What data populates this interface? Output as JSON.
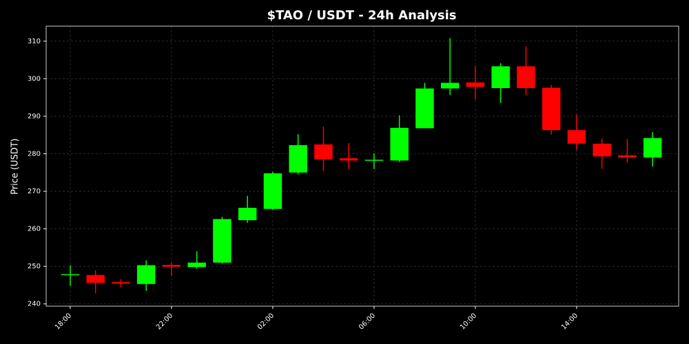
{
  "chart_data": {
    "type": "candlestick",
    "title": "$TAO / USDT - 24h Analysis",
    "y_label": "Price (USDT)",
    "categories": [
      "18:00",
      null,
      null,
      null,
      "22:00",
      null,
      null,
      null,
      "02:00",
      null,
      null,
      null,
      "06:00",
      null,
      null,
      null,
      "10:00",
      null,
      null,
      null,
      "14:00",
      null,
      null,
      null
    ],
    "open": [
      247.7,
      247.7,
      245.8,
      245.3,
      250.4,
      249.8,
      251.0,
      262.3,
      265.3,
      275.0,
      282.5,
      278.8,
      278.2,
      278.2,
      286.8,
      297.4,
      299.0,
      297.5,
      303.3,
      297.6,
      286.3,
      282.7,
      279.6,
      279.0
    ],
    "high": [
      250.3,
      249.0,
      246.6,
      251.6,
      251.0,
      254.0,
      263.2,
      268.8,
      275.2,
      285.2,
      287.2,
      282.8,
      280.1,
      290.2,
      298.9,
      310.8,
      303.4,
      304.1,
      308.6,
      298.3,
      290.4,
      284.0,
      283.9,
      285.8
    ],
    "low": [
      244.8,
      242.8,
      244.5,
      243.5,
      247.4,
      249.4,
      250.7,
      261.6,
      265.0,
      274.5,
      275.4,
      275.9,
      275.9,
      277.8,
      286.8,
      295.6,
      294.4,
      293.5,
      295.6,
      285.1,
      281.0,
      276.0,
      277.6,
      276.6
    ],
    "close": [
      247.9,
      245.6,
      245.4,
      250.3,
      249.9,
      251.0,
      262.6,
      265.6,
      274.8,
      282.3,
      278.5,
      278.2,
      278.4,
      286.9,
      297.4,
      298.9,
      297.8,
      303.3,
      297.5,
      286.3,
      282.7,
      279.3,
      279.0,
      284.2
    ],
    "up_color": "#00ff00",
    "down_color": "#ff0000",
    "ylim": [
      239.4,
      314.0
    ],
    "yticks": [
      240,
      250,
      260,
      270,
      280,
      290,
      300,
      310
    ],
    "grid": true
  }
}
